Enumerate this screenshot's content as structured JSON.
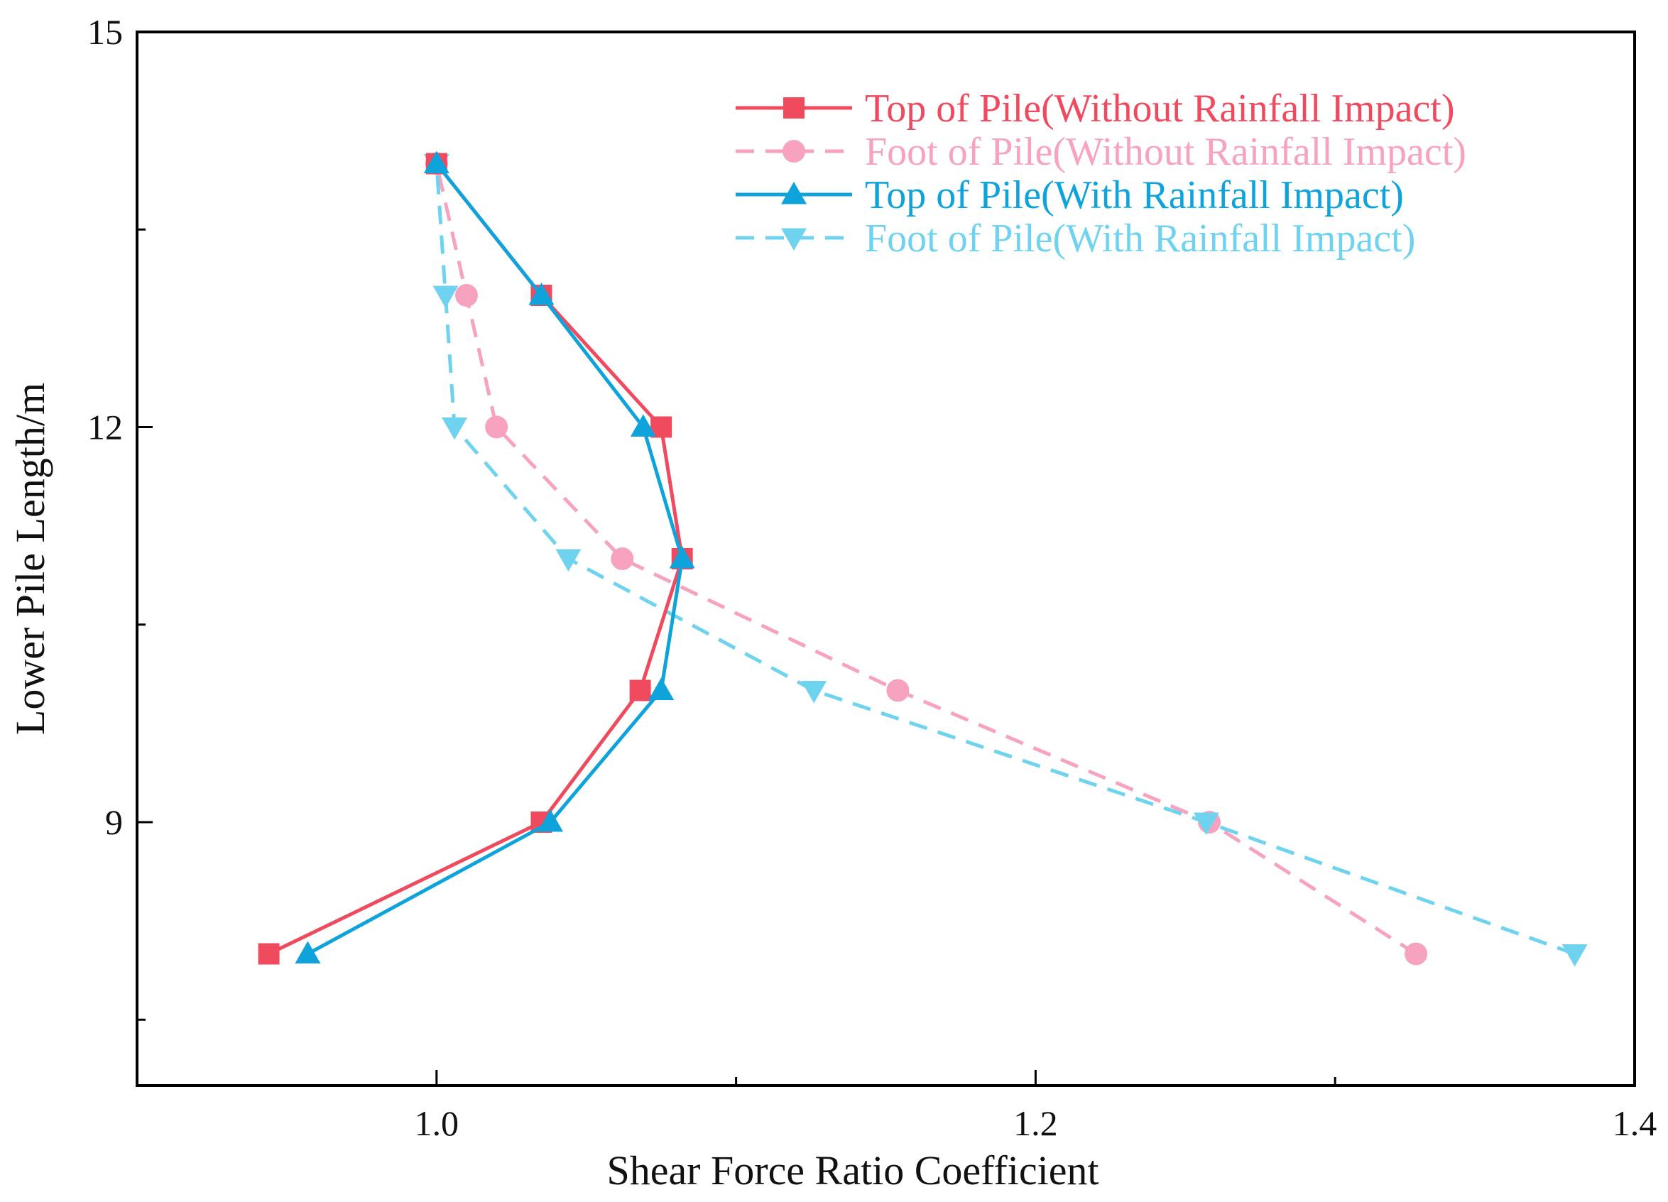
{
  "chart_data": {
    "type": "line",
    "title": "",
    "xlabel": "Shear Force Ratio Coefficient",
    "ylabel": "Lower Pile Length/m",
    "xlim": [
      0.9,
      1.4
    ],
    "ylim": [
      7,
      15
    ],
    "xticks": [
      1.0,
      1.2,
      1.4
    ],
    "xtick_labels": [
      "1.0",
      "1.2",
      "1.4"
    ],
    "x_minor_ticks": [
      1.1,
      1.3
    ],
    "yticks": [
      9,
      12,
      15
    ],
    "ytick_labels": [
      "9",
      "12",
      "15"
    ],
    "y_minor_ticks": [
      7.5,
      10.5,
      13.5
    ],
    "grid": false,
    "legend_position": "top-right",
    "series": [
      {
        "name": "Top of Pile(Without Rainfall Impact)",
        "color": "#f04a5e",
        "line": "solid",
        "marker": "square",
        "x": [
          0.944,
          1.035,
          1.068,
          1.082,
          1.075,
          1.035,
          1.0
        ],
        "y": [
          8,
          9,
          10,
          11,
          12,
          13,
          14
        ]
      },
      {
        "name": "Foot of Pile(Without Rainfall Impact)",
        "color": "#f7a3c0",
        "line": "dashed",
        "marker": "circle",
        "x": [
          1.327,
          1.258,
          1.154,
          1.062,
          1.02,
          1.01,
          1.0
        ],
        "y": [
          8,
          9,
          10,
          11,
          12,
          13,
          14
        ]
      },
      {
        "name": "Top of Pile(With Rainfall Impact)",
        "color": "#0fa3dc",
        "line": "solid",
        "marker": "triangle-up",
        "x": [
          0.957,
          1.038,
          1.075,
          1.082,
          1.069,
          1.035,
          1.0
        ],
        "y": [
          8,
          9,
          10,
          11,
          12,
          13,
          14
        ]
      },
      {
        "name": "Foot of Pile(With Rainfall Impact)",
        "color": "#6fd3f0",
        "line": "dashed",
        "marker": "triangle-down",
        "x": [
          1.38,
          1.257,
          1.126,
          1.044,
          1.006,
          1.003,
          1.0
        ],
        "y": [
          8,
          9,
          10,
          11,
          12,
          13,
          14
        ]
      }
    ]
  }
}
